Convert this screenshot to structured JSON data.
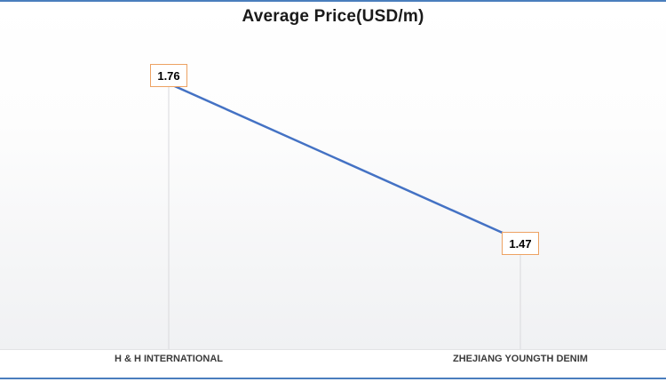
{
  "frame": {
    "border_color": "#4a7ebd",
    "background": "#ffffff"
  },
  "chart_data": {
    "type": "line",
    "title": "Average Price(USD/m)",
    "title_color": "#1a1a1a",
    "categories": [
      "H & H INTERNATIONAL",
      "ZHEJIANG YOUNGTH DENIM"
    ],
    "series": [
      {
        "name": "Average Price(USD/m)",
        "values": [
          1.76,
          1.47
        ]
      }
    ],
    "data_labels": [
      "1.76",
      "1.47"
    ],
    "xlabel": "",
    "ylabel": "",
    "ylim": [
      1.27,
      1.84
    ],
    "grid": false,
    "legend_position": "none",
    "line_color": "#4472c4",
    "drop_line_color": "#d9d9dc",
    "label_border_color": "#eda263",
    "label_fill": "#ffffff",
    "category_text_color": "#3b3b3b",
    "plot_gradient": [
      "#ffffff",
      "#f0f1f3"
    ]
  }
}
